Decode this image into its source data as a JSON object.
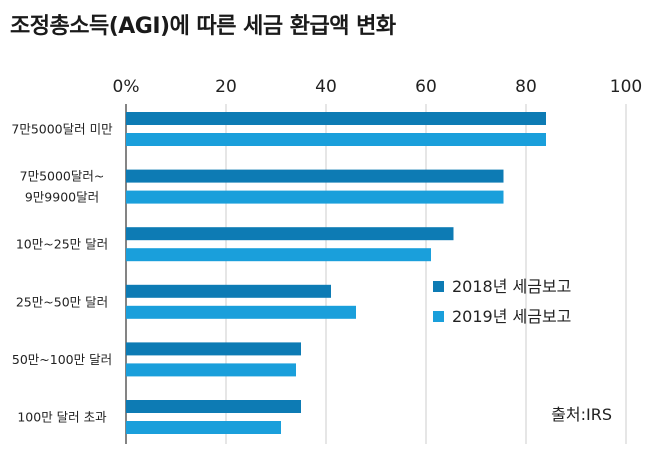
{
  "chart_data": {
    "type": "bar",
    "orientation": "horizontal",
    "title": "조정총소득(AGI)에 따른 세금 환급액 변화",
    "categories": [
      [
        "7만5000달러 미만"
      ],
      [
        "7만5000달러~",
        "9만9900달러"
      ],
      [
        "10만~25만 달러"
      ],
      [
        "25만~50만 달러"
      ],
      [
        "50만~100만 달러"
      ],
      [
        "100만 달러 초과"
      ]
    ],
    "series": [
      {
        "name": "2018년 세금보고",
        "color": "#0d7bb4",
        "values": [
          84,
          75.5,
          65.5,
          41,
          35,
          35
        ]
      },
      {
        "name": "2019년 세금보고",
        "color": "#1a9fdb",
        "values": [
          84,
          75.5,
          61,
          46,
          34,
          31
        ]
      }
    ],
    "xlim": [
      0,
      100
    ],
    "xticks": [
      "0%",
      "20",
      "40",
      "60",
      "80",
      "100"
    ],
    "xtick_values": [
      0,
      20,
      40,
      60,
      80,
      100
    ],
    "grid": true,
    "legend_position": "lower-right",
    "source": "출처:IRS"
  }
}
